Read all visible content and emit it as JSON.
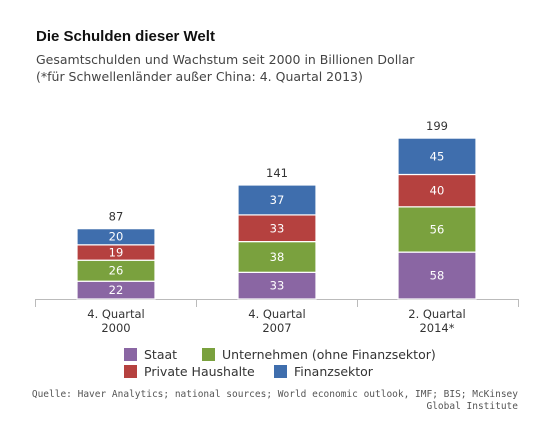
{
  "title": "Die Schulden dieser Welt",
  "subtitle_line1": "Gesamtschulden und Wachstum seit 2000 in Billionen Dollar",
  "subtitle_line2": "(*für Schwellenländer außer China: 4. Quartal 2013)",
  "source_line1": "Quelle: Haver Analytics; national sources; World economic outlook, IMF; BIS; McKinsey",
  "source_line2": "Global Institute",
  "chart_data": {
    "type": "bar",
    "stacked": true,
    "title": "Die Schulden dieser Welt",
    "categories": [
      [
        "4. Quartal",
        "2000"
      ],
      [
        "4. Quartal",
        "2007"
      ],
      [
        "2. Quartal",
        "2014*"
      ]
    ],
    "totals": [
      87,
      141,
      199
    ],
    "series": [
      {
        "name": "Staat",
        "color": "#8a66a3",
        "values": [
          22,
          33,
          58
        ]
      },
      {
        "name": "Unternehmen (ohne Finanzsektor)",
        "color": "#7aa13e",
        "values": [
          26,
          38,
          56
        ]
      },
      {
        "name": "Private Haushalte",
        "color": "#b5413f",
        "values": [
          19,
          33,
          40
        ]
      },
      {
        "name": "Finanzsektor",
        "color": "#3f6ead",
        "values": [
          20,
          37,
          45
        ]
      }
    ],
    "legend_position": "bottom",
    "grid": false
  }
}
